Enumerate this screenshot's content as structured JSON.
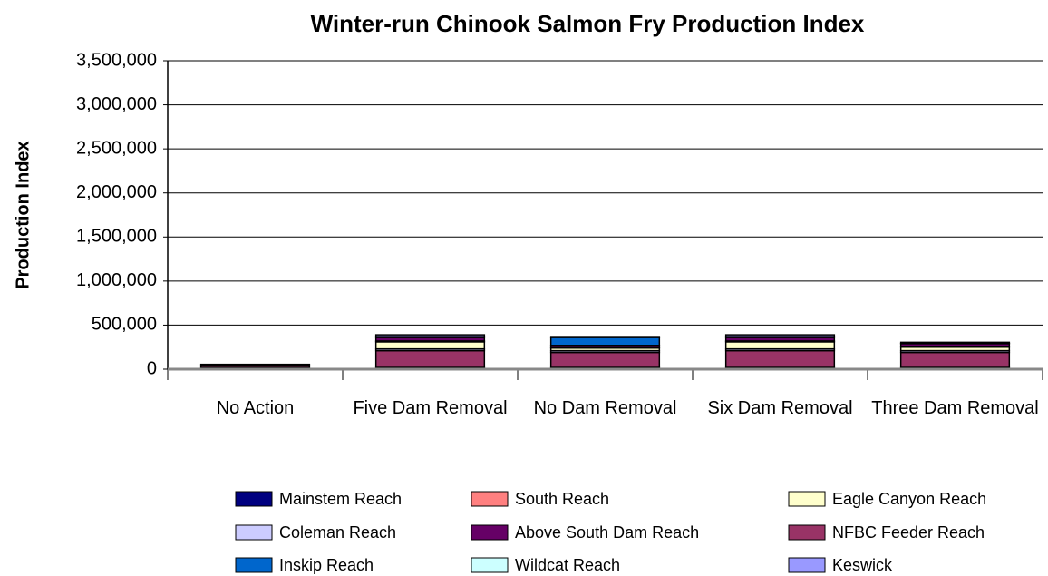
{
  "chart_data": {
    "type": "stacked_bar",
    "title": "Winter-run Chinook Salmon Fry Production Index",
    "y_label": "Production Index",
    "categories": [
      "No Action",
      "Five Dam Removal",
      "No Dam Removal",
      "Six Dam Removal",
      "Three Dam Removal"
    ],
    "series": [
      {
        "name": "Mainstem Reach",
        "color": "#000080",
        "values": [
          20000,
          20000,
          20000,
          20000,
          20000
        ]
      },
      {
        "name": "NFBC Feeder Reach",
        "color": "#993366",
        "values": [
          30000,
          190000,
          170000,
          190000,
          170000
        ]
      },
      {
        "name": "Coleman Reach",
        "color": "#ccccff",
        "values": [
          0,
          20000,
          20000,
          20000,
          20000
        ]
      },
      {
        "name": "Eagle Canyon Reach",
        "color": "#ffffcc",
        "values": [
          0,
          80000,
          30000,
          80000,
          40000
        ]
      },
      {
        "name": "South Reach",
        "color": "#ff8080",
        "values": [
          0,
          0,
          0,
          0,
          0
        ]
      },
      {
        "name": "Wildcat Reach",
        "color": "#ccffff",
        "values": [
          0,
          10000,
          10000,
          10000,
          10000
        ]
      },
      {
        "name": "Above South Dam Reach",
        "color": "#660066",
        "values": [
          5000,
          40000,
          20000,
          40000,
          30000
        ]
      },
      {
        "name": "Inskip Reach",
        "color": "#0066cc",
        "values": [
          0,
          10000,
          90000,
          10000,
          5000
        ]
      },
      {
        "name": "Keswick",
        "color": "#9999ff",
        "values": [
          0,
          20000,
          10000,
          20000,
          10000
        ]
      }
    ],
    "ylim": [
      0,
      3500000
    ],
    "yticks": [
      0,
      {
        "value": 500000,
        "label": "500,000"
      },
      {
        "value": 1000000,
        "label": "1,000,000"
      },
      {
        "value": 1500000,
        "label": "1,500,000"
      },
      {
        "value": 2000000,
        "label": "2,000,000"
      },
      {
        "value": 2500000,
        "label": "2,500,000"
      },
      {
        "value": 3000000,
        "label": "3,000,000"
      },
      {
        "value": 3500000,
        "label": "3,500,000"
      }
    ],
    "grid": true
  }
}
